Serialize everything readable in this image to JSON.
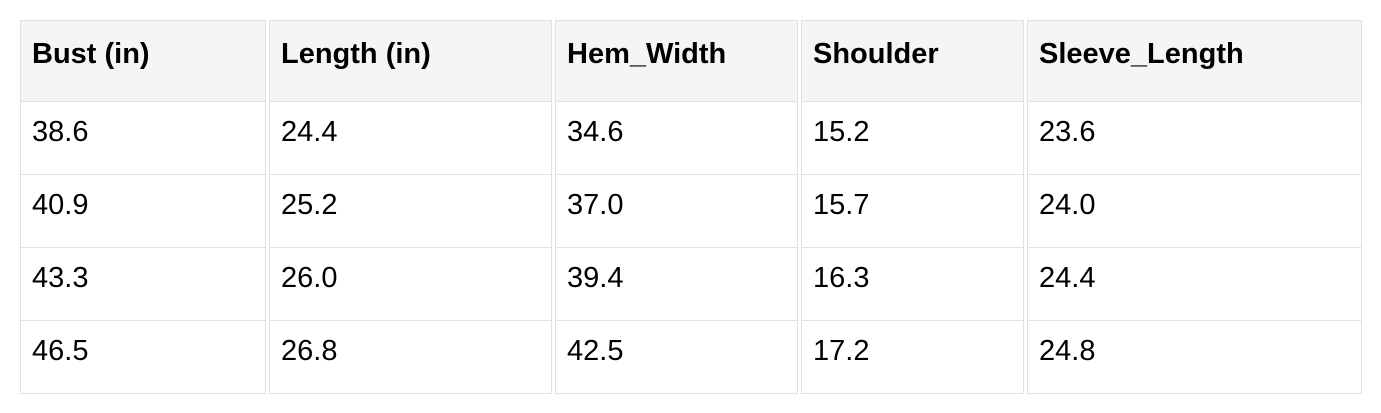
{
  "table": {
    "columns": [
      "Bust (in)",
      "Length (in)",
      "Hem_Width",
      "Shoulder",
      "Sleeve_Length"
    ],
    "rows": [
      [
        "38.6",
        "24.4",
        "34.6",
        "15.2",
        "23.6"
      ],
      [
        "40.9",
        "25.2",
        "37.0",
        "15.7",
        "24.0"
      ],
      [
        "43.3",
        "26.0",
        "39.4",
        "16.3",
        "24.4"
      ],
      [
        "46.5",
        "26.8",
        "42.5",
        "17.2",
        "24.8"
      ]
    ]
  },
  "colors": {
    "header_bg": "#f5f5f5",
    "border": "#e1e1e1",
    "text": "#000000",
    "page_bg": "#ffffff"
  }
}
